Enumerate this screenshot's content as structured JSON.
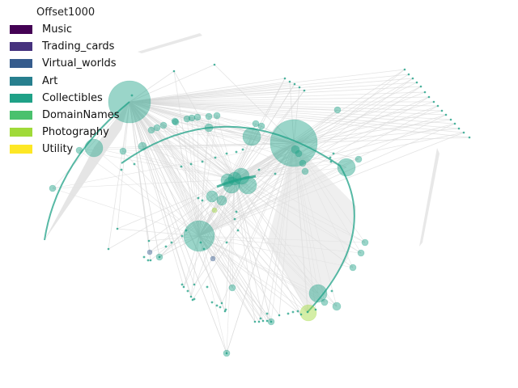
{
  "chart_data": {
    "type": "network",
    "legend": {
      "title": "Offset1000",
      "placement": "top-left",
      "entries": [
        {
          "label": "Music",
          "color": "#440154"
        },
        {
          "label": "Trading_cards",
          "color": "#46327e"
        },
        {
          "label": "Virtual_worlds",
          "color": "#365c8d"
        },
        {
          "label": "Art",
          "color": "#277f8e"
        },
        {
          "label": "Collectibles",
          "color": "#1fa187"
        },
        {
          "label": "DomainNames",
          "color": "#4ac16d"
        },
        {
          "label": "Photography",
          "color": "#a0da39"
        },
        {
          "label": "Utility",
          "color": "#fde725"
        }
      ]
    },
    "axes_visible": false,
    "edge_color": "#d9d9d9",
    "node_alpha": 0.45
  }
}
